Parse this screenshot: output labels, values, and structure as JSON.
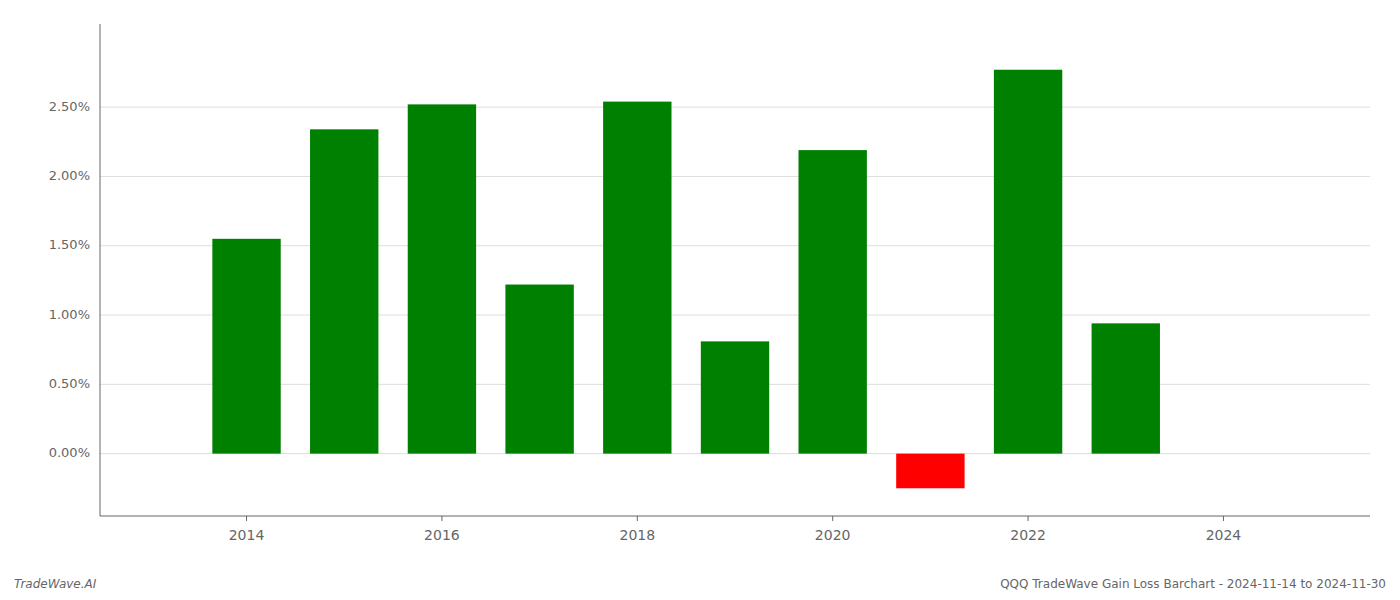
{
  "chart_data": {
    "type": "bar",
    "title": "QQQ TradeWave Gain Loss Barchart - 2024-11-14 to 2024-11-30",
    "annotations": [
      "TradeWave.AI"
    ],
    "x": [
      2014,
      2015,
      2016,
      2017,
      2018,
      2019,
      2020,
      2021,
      2022,
      2023
    ],
    "values": [
      1.55,
      2.34,
      2.52,
      1.22,
      2.54,
      0.81,
      2.19,
      -0.25,
      2.77,
      0.94
    ],
    "colors": [
      "#008000",
      "#008000",
      "#008000",
      "#008000",
      "#008000",
      "#008000",
      "#008000",
      "#ff0000",
      "#008000",
      "#008000"
    ],
    "xlim": [
      2012.5,
      2025.5
    ],
    "xticks": [
      2014,
      2016,
      2018,
      2020,
      2022,
      2024
    ],
    "ylim": [
      -0.45,
      3.1
    ],
    "yticks": [
      {
        "value": 0.0,
        "label": "0.00%"
      },
      {
        "value": 0.5,
        "label": "0.50%"
      },
      {
        "value": 1.0,
        "label": "1.00%"
      },
      {
        "value": 1.5,
        "label": "1.50%"
      },
      {
        "value": 2.0,
        "label": "2.00%"
      },
      {
        "value": 2.5,
        "label": "2.50%"
      }
    ],
    "grid": true
  }
}
